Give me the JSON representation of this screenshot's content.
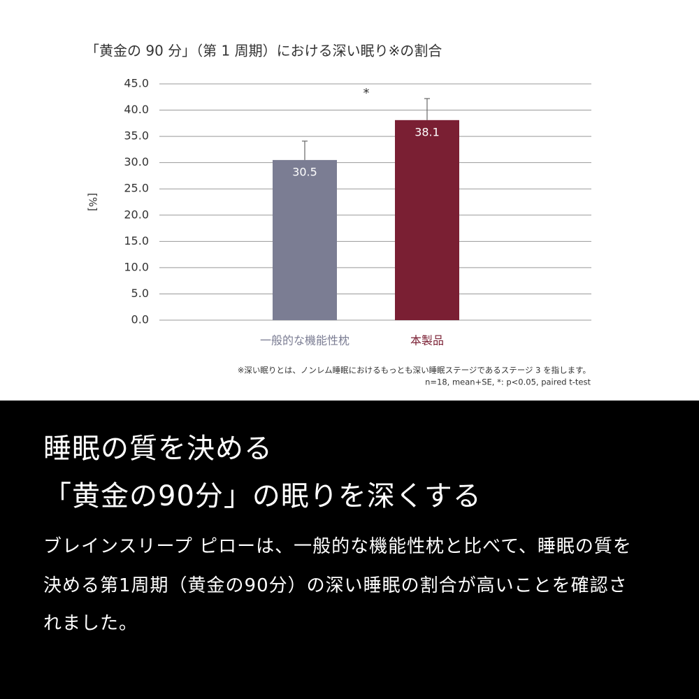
{
  "chart_data": {
    "type": "bar",
    "title": "「黄金の 90 分」（第 1 周期）における深い眠り※の割合",
    "y_label": "[%]",
    "categories": [
      "一般的な機能性枕",
      "本製品"
    ],
    "values": [
      30.5,
      38.1
    ],
    "errors": [
      3.6,
      4.1
    ],
    "colors": [
      "#7b7d93",
      "#7a1f33"
    ],
    "ylim": [
      0,
      45
    ],
    "yticks": [
      {
        "value": 0,
        "label": "0.0"
      },
      {
        "value": 5,
        "label": "5.0"
      },
      {
        "value": 10,
        "label": "10.0"
      },
      {
        "value": 15,
        "label": "15.0"
      },
      {
        "value": 20,
        "label": "20.0"
      },
      {
        "value": 25,
        "label": "25.0"
      },
      {
        "value": 30,
        "label": "30.0"
      },
      {
        "value": 35,
        "label": "35.0"
      },
      {
        "value": 40,
        "label": "40.0"
      },
      {
        "value": 45,
        "label": "45.0"
      }
    ],
    "grid": true,
    "significance": "*",
    "footnotes": [
      "※深い眠りとは、ノンレム睡眠におけるもっとも深い睡眠ステージであるステージ 3 を指します。",
      "n=18, mean+SE, *: p<0.05, paired t-test"
    ]
  },
  "headline": [
    "睡眠の質を決める",
    "「黄金の90分」の眠りを深くする"
  ],
  "body": [
    "ブレインスリープ ピローは、一般的な機能性枕と比べて、睡眠の質を",
    "決める第1周期（黄金の90分）の深い睡眠の割合が高いことを確認さ",
    "れました。"
  ]
}
